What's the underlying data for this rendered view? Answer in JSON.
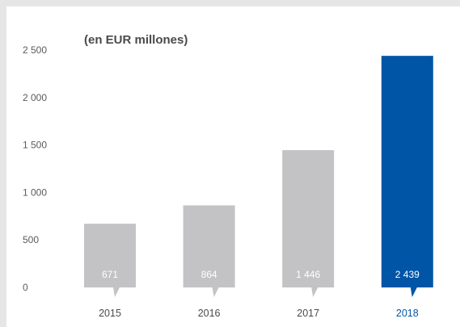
{
  "chart_data": {
    "type": "bar",
    "title": "(en EUR millones)",
    "categories": [
      "2015",
      "2016",
      "2017",
      "2018"
    ],
    "values": [
      671,
      864,
      1446,
      2439
    ],
    "value_labels": [
      "671",
      "864",
      "1 446",
      "2 439"
    ],
    "y_ticks": [
      0,
      500,
      1000,
      1500,
      2000,
      2500
    ],
    "y_tick_labels": [
      "0",
      "500",
      "1 000",
      "1 500",
      "2 000",
      "2 500"
    ],
    "ylim": [
      0,
      2500
    ],
    "grid": false,
    "highlight_index": 3,
    "colors": {
      "bar": "#c3c3c5",
      "highlight": "#0055a6",
      "label": "#4a4a4a",
      "highlight_label": "#0055a6",
      "background": "#e6e6e7",
      "panel": "#ffffff"
    }
  }
}
